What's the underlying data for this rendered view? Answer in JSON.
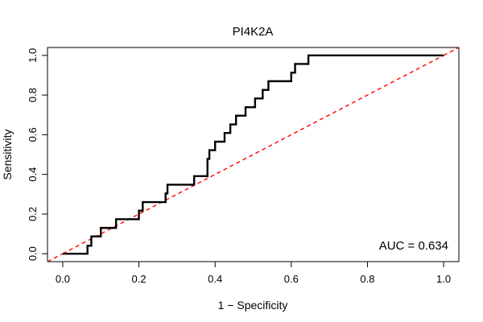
{
  "chart_data": {
    "type": "line",
    "title": "PI4K2A",
    "xlabel": "1 − Specificity",
    "ylabel": "Sensitivity",
    "xlim": [
      -0.04,
      1.04
    ],
    "ylim": [
      -0.04,
      1.04
    ],
    "x_ticks": [
      0.0,
      0.2,
      0.4,
      0.6,
      0.8,
      1.0
    ],
    "x_tick_labels": [
      "0.0",
      "0.2",
      "0.4",
      "0.6",
      "0.8",
      "1.0"
    ],
    "y_ticks": [
      0.0,
      0.2,
      0.4,
      0.6,
      0.8,
      1.0
    ],
    "y_tick_labels": [
      "0.0",
      "0.2",
      "0.4",
      "0.6",
      "0.8",
      "1.0"
    ],
    "grid": false,
    "annotation": "AUC = 0.634",
    "colors": {
      "roc": "#000000",
      "reference": "#ff0000"
    },
    "series": [
      {
        "style": "step",
        "x": [
          0.0,
          0.065,
          0.065,
          0.075,
          0.075,
          0.1,
          0.1,
          0.14,
          0.14,
          0.2,
          0.2,
          0.21,
          0.21,
          0.27,
          0.27,
          0.275,
          0.275,
          0.345,
          0.345,
          0.38,
          0.38,
          0.385,
          0.385,
          0.4,
          0.4,
          0.425,
          0.425,
          0.44,
          0.44,
          0.455,
          0.455,
          0.48,
          0.48,
          0.505,
          0.505,
          0.525,
          0.525,
          0.54,
          0.54,
          0.6,
          0.6,
          0.61,
          0.61,
          0.645,
          0.645,
          1.0
        ],
        "y": [
          0.0,
          0.0,
          0.04,
          0.04,
          0.087,
          0.087,
          0.13,
          0.13,
          0.174,
          0.174,
          0.217,
          0.217,
          0.26,
          0.26,
          0.304,
          0.304,
          0.348,
          0.348,
          0.391,
          0.391,
          0.478,
          0.478,
          0.522,
          0.522,
          0.565,
          0.565,
          0.609,
          0.609,
          0.652,
          0.652,
          0.696,
          0.696,
          0.739,
          0.739,
          0.783,
          0.783,
          0.826,
          0.826,
          0.87,
          0.87,
          0.913,
          0.913,
          0.957,
          0.957,
          1.0,
          1.0
        ]
      },
      {
        "style": "dashed",
        "x": [
          0.0,
          1.0
        ],
        "y": [
          0.0,
          1.0
        ]
      }
    ]
  }
}
